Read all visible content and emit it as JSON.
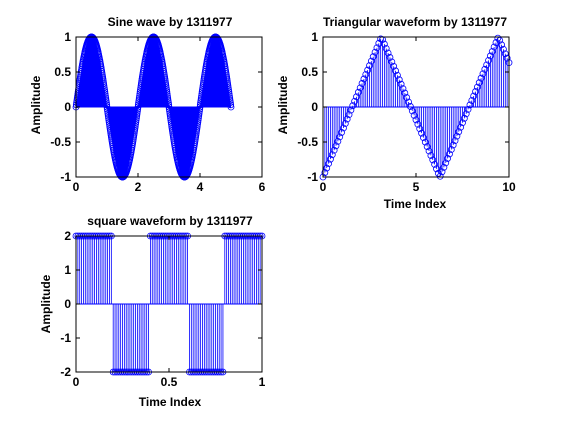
{
  "chart_data": [
    {
      "type": "stem",
      "title": "Sine wave by 1311977",
      "xlabel": "",
      "ylabel": "Amplitude",
      "xlim": [
        0,
        6
      ],
      "ylim": [
        -1,
        1
      ],
      "xticks": [
        0,
        2,
        4,
        6
      ],
      "yticks": [
        -1,
        -0.5,
        0,
        0.5,
        1
      ],
      "xtick_labels": [
        "0",
        "2",
        "4",
        "6"
      ],
      "ytick_labels": [
        "-1",
        "-0.5",
        "0",
        "0.5",
        "1"
      ],
      "signal": "sin(pi*t)",
      "t_range": [
        0,
        5
      ],
      "step": 0.01,
      "color": "#0000ff"
    },
    {
      "type": "stem",
      "title": "Triangular waveform by 1311977",
      "xlabel": "Time Index",
      "ylabel": "Amplitude",
      "xlim": [
        0,
        10
      ],
      "ylim": [
        -1,
        1
      ],
      "xticks": [
        0,
        5,
        10
      ],
      "yticks": [
        -1,
        -0.5,
        0,
        0.5,
        1
      ],
      "xtick_labels": [
        "0",
        "5",
        "10"
      ],
      "ytick_labels": [
        "-1",
        "-0.5",
        "0",
        "0.5",
        "1"
      ],
      "signal": "sawtooth(t, 0.5)",
      "t_range": [
        0,
        10
      ],
      "step": 0.1,
      "color": "#0000ff"
    },
    {
      "type": "stem",
      "title": "square waveform by 1311977",
      "xlabel": "Time Index",
      "ylabel": "Amplitude",
      "xlim": [
        0,
        1
      ],
      "ylim": [
        -2,
        2
      ],
      "xticks": [
        0,
        0.5,
        1
      ],
      "yticks": [
        -2,
        -1,
        0,
        1,
        2
      ],
      "xtick_labels": [
        "0",
        "0.5",
        "1"
      ],
      "ytick_labels": [
        "-2",
        "-1",
        "0",
        "1",
        "2"
      ],
      "signal": "2*square(2*pi*2.5*t)",
      "t_range": [
        0,
        1
      ],
      "step": 0.01,
      "color": "#0000ff"
    }
  ]
}
